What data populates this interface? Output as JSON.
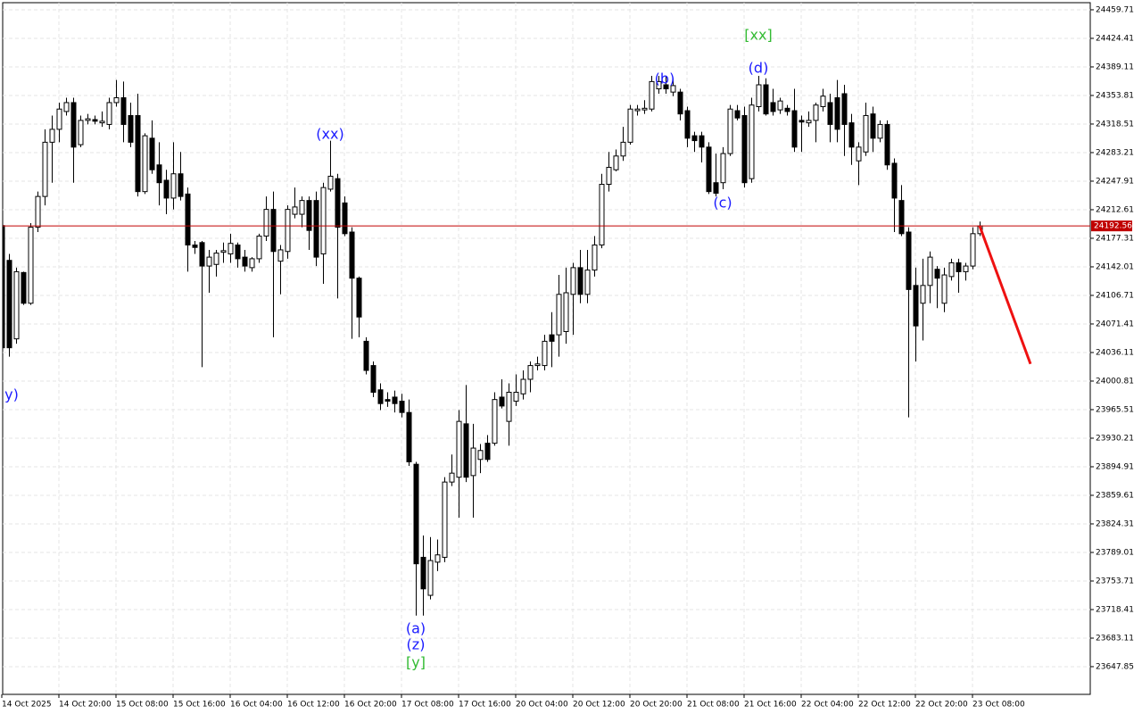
{
  "chart_data": {
    "type": "candlestick",
    "categories": [
      "14 Oct 2025",
      null,
      null,
      null,
      null,
      null,
      null,
      null,
      "14 Oct 20:00",
      null,
      null,
      null,
      null,
      null,
      null,
      null,
      "15 Oct 08:00",
      null,
      null,
      null,
      null,
      null,
      null,
      null,
      "15 Oct 16:00",
      null,
      null,
      null,
      null,
      null,
      null,
      null,
      "16 Oct 04:00",
      null,
      null,
      null,
      null,
      null,
      null,
      null,
      "16 Oct 12:00",
      null,
      null,
      null,
      null,
      null,
      null,
      null,
      "16 Oct 20:00",
      null,
      null,
      null,
      null,
      null,
      null,
      null,
      "17 Oct 08:00",
      null,
      null,
      null,
      null,
      null,
      null,
      null,
      "17 Oct 16:00",
      null,
      null,
      null,
      null,
      null,
      null,
      null,
      "20 Oct 04:00",
      null,
      null,
      null,
      null,
      null,
      null,
      null,
      "20 Oct 12:00",
      null,
      null,
      null,
      null,
      null,
      null,
      null,
      "20 Oct 20:00",
      null,
      null,
      null,
      null,
      null,
      null,
      null,
      "21 Oct 08:00",
      null,
      null,
      null,
      null,
      null,
      null,
      null,
      "21 Oct 16:00",
      null,
      null,
      null,
      null,
      null,
      null,
      null,
      "22 Oct 04:00",
      null,
      null,
      null,
      null,
      null,
      null,
      null,
      "22 Oct 12:00",
      null,
      null,
      null,
      null,
      null,
      null,
      null,
      "22 Oct 20:00",
      null,
      null,
      null,
      null,
      null,
      null,
      null,
      "23 Oct 08:00",
      null
    ],
    "open": [
      24193,
      24150,
      24053,
      24135,
      24097,
      24191,
      24229,
      24296,
      24312,
      24334,
      24345,
      24293,
      24323,
      24324,
      24320,
      24318,
      24345,
      24351,
      24329,
      24329,
      24235,
      24301,
      24268,
      24249,
      24227,
      24257,
      24232,
      24169,
      24172,
      24143,
      24145,
      24160,
      24158,
      24169,
      24154,
      24141,
      24152,
      24180,
      24213,
      24149,
      24161,
      24207,
      24207,
      24224,
      24224,
      24158,
      24238,
      24251,
      24221,
      24185,
      24128,
      24050,
      24020,
      23990,
      23978,
      23981,
      23976,
      23962,
      23898,
      23783,
      23736,
      23777,
      23783,
      23876,
      23882,
      23948,
      23884,
      23904,
      23924,
      23924,
      23981,
      23951,
      23976,
      23985,
      24003,
      24020,
      24020,
      24058,
      24058,
      24062,
      24108,
      24141,
      24108,
      24138,
      24169,
      24244,
      24262,
      24279,
      24296,
      24335,
      24336,
      24337,
      24362,
      24367,
      24358,
      24358,
      24335,
      24304,
      24304,
      24290,
      24246,
      24246,
      24282,
      24335,
      24329,
      24251,
      24340,
      24367,
      24345,
      24336,
      24338,
      24335,
      24323,
      24320,
      24323,
      24340,
      24345,
      24351,
      24356,
      24320,
      24273,
      24284,
      24331,
      24301,
      24318,
      24270,
      24224,
      24185,
      24119,
      24097,
      24119,
      24139,
      24097,
      24130,
      24147,
      24136,
      24143,
      24183
    ],
    "high": [
      24196,
      24158,
      24141,
      24136,
      24196,
      24235,
      24312,
      24329,
      24345,
      24351,
      24351,
      24329,
      24331,
      24329,
      24334,
      24351,
      24373,
      24371,
      24345,
      24356,
      24307,
      24323,
      24296,
      24262,
      24296,
      24284,
      24240,
      24174,
      24174,
      24163,
      24163,
      24172,
      24183,
      24172,
      24163,
      24154,
      24183,
      24229,
      24235,
      24169,
      24218,
      24240,
      24229,
      24229,
      24235,
      24246,
      24298,
      24257,
      24229,
      24191,
      24130,
      24055,
      24025,
      23998,
      23987,
      23989,
      23985,
      23978,
      23901,
      23810,
      23808,
      23805,
      23882,
      23910,
      23965,
      23996,
      23948,
      23923,
      23934,
      23987,
      24003,
      23998,
      24009,
      24014,
      24025,
      24031,
      24058,
      24086,
      24132,
      24141,
      24147,
      24163,
      24163,
      24180,
      24257,
      24284,
      24287,
      24315,
      24342,
      24342,
      24348,
      24378,
      24378,
      24378,
      24375,
      24362,
      24340,
      24309,
      24309,
      24296,
      24282,
      24290,
      24342,
      24342,
      24340,
      24351,
      24378,
      24375,
      24362,
      24351,
      24342,
      24362,
      24329,
      24334,
      24345,
      24362,
      24356,
      24373,
      24367,
      24331,
      24296,
      24345,
      24340,
      24323,
      24323,
      24276,
      24243,
      24191,
      24141,
      24152,
      24161,
      24143,
      24141,
      24152,
      24152,
      24147,
      24191,
      24198
    ],
    "low": [
      23992,
      24031,
      24047,
      24095,
      24095,
      24185,
      24218,
      24246,
      24296,
      24329,
      24246,
      24290,
      24318,
      24318,
      24315,
      24312,
      24340,
      24296,
      24290,
      24229,
      24232,
      24257,
      24218,
      24207,
      24213,
      24224,
      24136,
      24158,
      24018,
      24110,
      24130,
      24147,
      24147,
      24141,
      24136,
      24136,
      24147,
      24174,
      24055,
      24108,
      24152,
      24202,
      24191,
      24163,
      24143,
      24121,
      24235,
      24103,
      24180,
      24053,
      24055,
      24009,
      23981,
      23965,
      23969,
      23962,
      23956,
      23896,
      23711,
      23711,
      23731,
      23766,
      23777,
      23871,
      23832,
      23876,
      23832,
      23887,
      23901,
      23921,
      23967,
      23921,
      23970,
      23978,
      23987,
      24014,
      24014,
      24018,
      24031,
      24047,
      24058,
      24097,
      24097,
      24130,
      24165,
      24235,
      24260,
      24273,
      24293,
      24329,
      24331,
      24334,
      24356,
      24356,
      24353,
      24323,
      24290,
      24284,
      24271,
      24232,
      24229,
      24238,
      24279,
      24323,
      24240,
      24246,
      24334,
      24329,
      24329,
      24331,
      24329,
      24284,
      24284,
      24315,
      24296,
      24334,
      24296,
      24296,
      24279,
      24268,
      24243,
      24279,
      24284,
      24296,
      24262,
      24185,
      24180,
      23956,
      24025,
      24051,
      24097,
      24091,
      24086,
      24125,
      24110,
      24125,
      24139,
      24180
    ],
    "close": [
      24042,
      24042,
      24136,
      24097,
      24191,
      24229,
      24296,
      24312,
      24337,
      24345,
      24290,
      24323,
      24325,
      24322,
      24322,
      24345,
      24351,
      24318,
      24296,
      24235,
      24304,
      24262,
      24246,
      24227,
      24257,
      24229,
      24169,
      24166,
      24143,
      24154,
      24159,
      24162,
      24171,
      24152,
      24143,
      24152,
      24180,
      24213,
      24161,
      24163,
      24213,
      24216,
      24224,
      24187,
      24154,
      24240,
      24254,
      24191,
      24183,
      24128,
      24080,
      24014,
      23987,
      23973,
      23976,
      23973,
      23962,
      23901,
      23775,
      23744,
      23779,
      23786,
      23876,
      23887,
      23951,
      23882,
      23918,
      23915,
      23904,
      23978,
      23970,
      23987,
      23987,
      24003,
      24020,
      24022,
      24050,
      24050,
      24108,
      24110,
      24141,
      24108,
      24138,
      24169,
      24244,
      24265,
      24279,
      24296,
      24337,
      24337,
      24338,
      24371,
      24371,
      24362,
      24366,
      24331,
      24301,
      24298,
      24290,
      24235,
      24233,
      24282,
      24337,
      24326,
      24246,
      24342,
      24367,
      24331,
      24334,
      24347,
      24334,
      24290,
      24321,
      24323,
      24342,
      24353,
      24318,
      24312,
      24318,
      24290,
      24290,
      24329,
      24301,
      24318,
      24268,
      24227,
      24183,
      24114,
      24069,
      24119,
      24154,
      24128,
      24132,
      24147,
      24136,
      24143,
      24183,
      24192.56
    ],
    "up_color": "#ffffff",
    "down_color": "#000000",
    "outline_color": "#000000",
    "ylim": [
      23613.6,
      24468.5
    ],
    "yticks": [
      24459.71,
      24424.41,
      24389.11,
      24353.81,
      24318.51,
      24283.21,
      24247.91,
      24212.61,
      24177.31,
      24142.01,
      24106.71,
      24071.41,
      24036.11,
      24000.81,
      23965.51,
      23930.21,
      23894.91,
      23859.61,
      23824.31,
      23789.01,
      23753.71,
      23718.41,
      23683.11,
      23647.85
    ],
    "grid": true,
    "current_price": {
      "value": 24192.56,
      "color": "#c00000"
    },
    "forecast_line": {
      "color": "#ee1111",
      "values": [
        24192.56,
        24022
      ]
    },
    "annotations": [
      {
        "text": "y)",
        "color": "#1a1aff"
      },
      {
        "text": "(xx)",
        "color": "#1a1aff"
      },
      {
        "text": "(a)",
        "color": "#1a1aff"
      },
      {
        "text": "(z)",
        "color": "#1a1aff"
      },
      {
        "text": "[y]",
        "color": "#33bb33"
      },
      {
        "text": "(b)",
        "color": "#1a1aff"
      },
      {
        "text": "(c)",
        "color": "#1a1aff"
      },
      {
        "text": "(d)",
        "color": "#1a1aff"
      },
      {
        "text": "[xx]",
        "color": "#33bb33"
      }
    ]
  }
}
